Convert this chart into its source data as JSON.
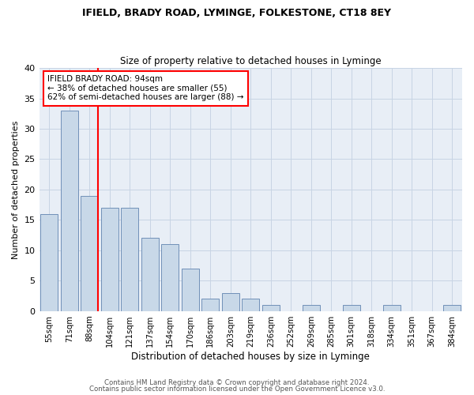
{
  "title1": "IFIELD, BRADY ROAD, LYMINGE, FOLKESTONE, CT18 8EY",
  "title2": "Size of property relative to detached houses in Lyminge",
  "xlabel": "Distribution of detached houses by size in Lyminge",
  "ylabel": "Number of detached properties",
  "categories": [
    "55sqm",
    "71sqm",
    "88sqm",
    "104sqm",
    "121sqm",
    "137sqm",
    "154sqm",
    "170sqm",
    "186sqm",
    "203sqm",
    "219sqm",
    "236sqm",
    "252sqm",
    "269sqm",
    "285sqm",
    "301sqm",
    "318sqm",
    "334sqm",
    "351sqm",
    "367sqm",
    "384sqm"
  ],
  "values": [
    16,
    33,
    19,
    17,
    17,
    12,
    11,
    7,
    2,
    3,
    2,
    1,
    0,
    1,
    0,
    1,
    0,
    1,
    0,
    0,
    1
  ],
  "bar_color": "#c8d8e8",
  "bar_edge_color": "#7090b8",
  "red_line_index": 2,
  "annotation_text": "IFIELD BRADY ROAD: 94sqm\n← 38% of detached houses are smaller (55)\n62% of semi-detached houses are larger (88) →",
  "annotation_box_color": "white",
  "annotation_box_edge_color": "red",
  "ylim": [
    0,
    40
  ],
  "yticks": [
    0,
    5,
    10,
    15,
    20,
    25,
    30,
    35,
    40
  ],
  "footer1": "Contains HM Land Registry data © Crown copyright and database right 2024.",
  "footer2": "Contains public sector information licensed under the Open Government Licence v3.0.",
  "grid_color": "#c8d4e4",
  "background_color": "#e8eef6"
}
